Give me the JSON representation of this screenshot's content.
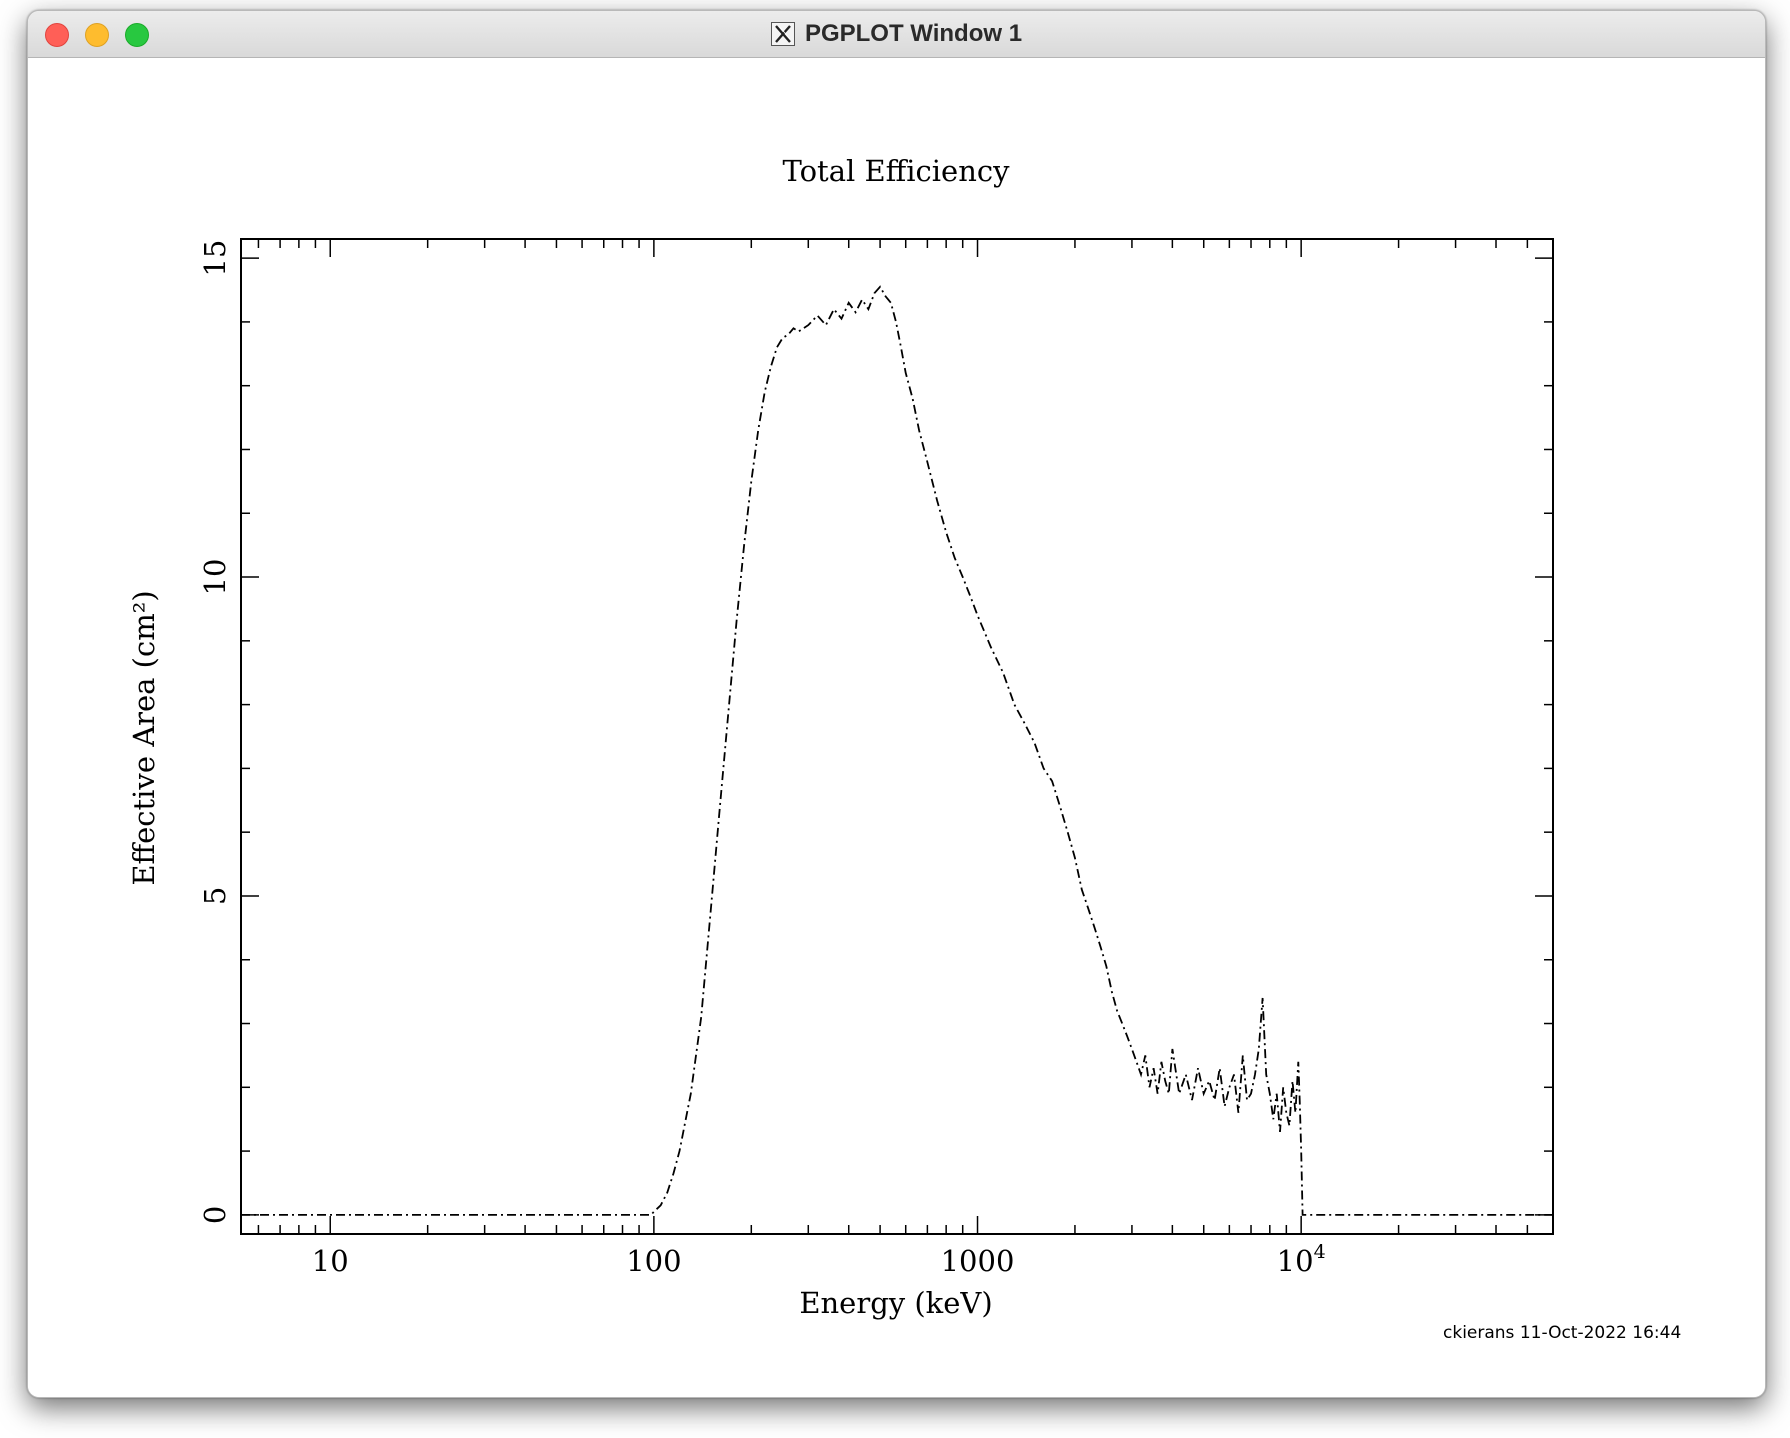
{
  "window": {
    "title": "PGPLOT Window 1"
  },
  "footer": {
    "user": "ckierans",
    "timestamp": "11-Oct-2022 16:44"
  },
  "chart_data": {
    "type": "line",
    "title": "Total Efficiency",
    "xlabel": "Energy (keV)",
    "ylabel": "Effective Area (cm²)",
    "xscale": "log",
    "xlim": [
      5.3,
      60000
    ],
    "ylim": [
      -0.3,
      15.3
    ],
    "grid": false,
    "legend": "none",
    "x_ticks": [
      {
        "value": 10,
        "label": "10",
        "exp": ""
      },
      {
        "value": 100,
        "label": "100",
        "exp": ""
      },
      {
        "value": 1000,
        "label": "1000",
        "exp": ""
      },
      {
        "value": 10000,
        "label": "10",
        "exp": "4"
      }
    ],
    "y_ticks": [
      {
        "value": 0,
        "label": "0"
      },
      {
        "value": 5,
        "label": "5"
      },
      {
        "value": 10,
        "label": "10"
      },
      {
        "value": 15,
        "label": "15"
      }
    ],
    "series": [
      {
        "line_style": "dash-dot",
        "x": [
          5.3,
          98,
          100,
          105,
          110,
          115,
          120,
          130,
          140,
          150,
          160,
          170,
          180,
          190,
          200,
          210,
          220,
          230,
          240,
          250,
          260,
          270,
          280,
          300,
          320,
          340,
          360,
          380,
          400,
          420,
          440,
          460,
          480,
          500,
          520,
          540,
          560,
          580,
          600,
          630,
          660,
          700,
          750,
          800,
          850,
          900,
          950,
          1000,
          1100,
          1200,
          1300,
          1400,
          1500,
          1600,
          1700,
          1800,
          1900,
          2000,
          2100,
          2200,
          2300,
          2400,
          2500,
          2600,
          2700,
          2800,
          2900,
          3000,
          3100,
          3200,
          3300,
          3400,
          3500,
          3600,
          3700,
          3800,
          3900,
          4000,
          4200,
          4400,
          4600,
          4800,
          5000,
          5200,
          5400,
          5600,
          5800,
          6000,
          6200,
          6400,
          6600,
          6800,
          7000,
          7200,
          7400,
          7600,
          7800,
          8000,
          8200,
          8400,
          8600,
          8800,
          9000,
          9200,
          9400,
          9600,
          9800,
          9900,
          10000,
          10100,
          60000
        ],
        "y": [
          0,
          0,
          0.05,
          0.15,
          0.35,
          0.65,
          1.0,
          1.9,
          3.1,
          4.8,
          6.4,
          7.9,
          9.3,
          10.5,
          11.5,
          12.3,
          12.9,
          13.3,
          13.6,
          13.75,
          13.8,
          13.9,
          13.85,
          13.95,
          14.1,
          13.95,
          14.2,
          14.05,
          14.3,
          14.15,
          14.35,
          14.2,
          14.45,
          14.55,
          14.4,
          14.3,
          14.0,
          13.6,
          13.2,
          12.8,
          12.3,
          11.8,
          11.2,
          10.7,
          10.3,
          10.0,
          9.7,
          9.4,
          8.9,
          8.5,
          8.0,
          7.7,
          7.4,
          7.0,
          6.8,
          6.4,
          6.0,
          5.6,
          5.1,
          4.8,
          4.5,
          4.2,
          3.9,
          3.5,
          3.2,
          3.0,
          2.8,
          2.6,
          2.4,
          2.2,
          2.5,
          2.0,
          2.3,
          1.9,
          2.4,
          2.1,
          1.9,
          2.6,
          1.9,
          2.2,
          1.8,
          2.3,
          1.9,
          2.1,
          1.8,
          2.3,
          1.7,
          2.0,
          2.2,
          1.6,
          2.5,
          1.8,
          1.9,
          2.2,
          2.6,
          3.4,
          2.2,
          1.9,
          1.5,
          1.9,
          1.3,
          2.0,
          1.6,
          1.4,
          2.1,
          1.6,
          2.4,
          1.8,
          1.0,
          0,
          0
        ]
      }
    ]
  }
}
